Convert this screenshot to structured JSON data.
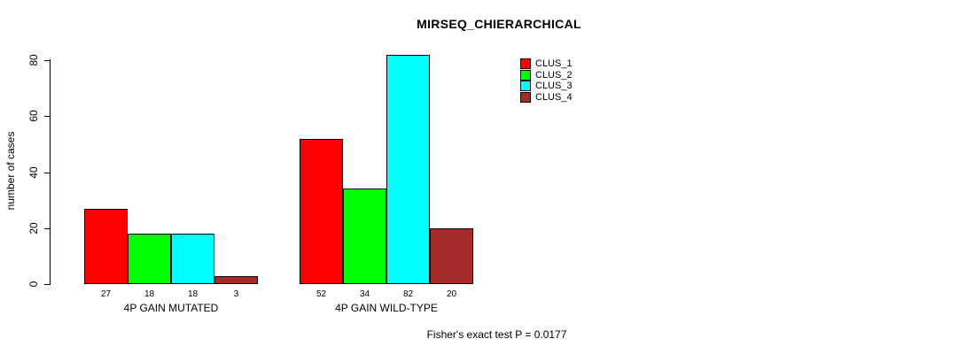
{
  "chart_data": {
    "type": "bar",
    "title": "MIRSEQ_CHIERARCHICAL",
    "ylabel": "number of cases",
    "xlabel": "",
    "caption": "Fisher's exact test P = 0.0177",
    "categories": [
      "4P GAIN MUTATED",
      "4P GAIN WILD-TYPE"
    ],
    "series": [
      {
        "name": "CLUS_1",
        "color": "#ff0000",
        "values": [
          27,
          52
        ]
      },
      {
        "name": "CLUS_2",
        "color": "#00ff00",
        "values": [
          18,
          34
        ]
      },
      {
        "name": "CLUS_3",
        "color": "#00ffff",
        "values": [
          18,
          82
        ]
      },
      {
        "name": "CLUS_4",
        "color": "#a52a2a",
        "values": [
          3,
          20
        ]
      }
    ],
    "bar_value_labels": [
      [
        27,
        18,
        18,
        3
      ],
      [
        52,
        34,
        82,
        20
      ]
    ],
    "yticks": [
      0,
      20,
      40,
      60,
      80
    ],
    "ylim": [
      0,
      80
    ],
    "grid": false,
    "legend_position": "top-right",
    "background_color": "#ffffff",
    "axis_color": "#000000"
  }
}
